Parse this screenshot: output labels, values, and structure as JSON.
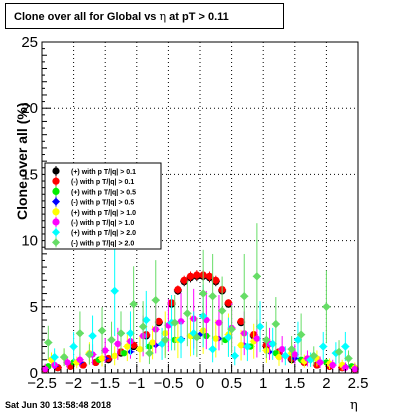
{
  "title": {
    "prefix": "Clone  over all for Global vs",
    "symbol": "η",
    "suffix": "at pT > 0.11"
  },
  "ylabel": "Clone  over all (%)",
  "xlabel": "η",
  "timestamp": "Sat Jun 30 13:58:48 2018",
  "chart_data": {
    "type": "scatter",
    "xlim": [
      -2.5,
      2.5
    ],
    "ylim": [
      0,
      25
    ],
    "xticks": [
      -2.5,
      -2,
      -1.5,
      -1,
      -0.5,
      0,
      0.5,
      1,
      1.5,
      2,
      2.5
    ],
    "xtick_labels": [
      "−2.5",
      "−2",
      "−1.5",
      "−1",
      "−0.5",
      "0",
      "0.5",
      "1",
      "1.5",
      "2",
      "2.5"
    ],
    "yticks": [
      0,
      5,
      10,
      15,
      20,
      25
    ],
    "ytick_labels": [
      "0",
      "5",
      "10",
      "15",
      "20",
      "25"
    ],
    "grid": true,
    "legend_position": "left",
    "series": [
      {
        "name": "(+) with p T/|q| > 0.1",
        "color": "#000000",
        "x": [
          -2.45,
          -2.25,
          -2.05,
          -1.85,
          -1.65,
          -1.45,
          -1.25,
          -1.05,
          -0.85,
          -0.65,
          -0.45,
          -0.35,
          -0.25,
          -0.15,
          -0.05,
          0.05,
          0.15,
          0.25,
          0.35,
          0.45,
          0.65,
          0.85,
          1.05,
          1.25,
          1.45,
          1.65,
          1.85,
          2.05,
          2.25,
          2.45
        ],
        "y": [
          0.3,
          0.4,
          0.5,
          0.6,
          0.8,
          1.0,
          1.5,
          2.0,
          2.8,
          3.8,
          5.2,
          6.2,
          6.9,
          7.2,
          7.3,
          7.3,
          7.2,
          6.9,
          6.2,
          5.2,
          3.8,
          2.8,
          2.0,
          1.5,
          1.0,
          0.8,
          0.6,
          0.5,
          0.4,
          0.3
        ]
      },
      {
        "name": "(-) with p T/|q| > 0.1",
        "color": "#ff0000",
        "x": [
          -2.45,
          -2.25,
          -2.05,
          -1.85,
          -1.65,
          -1.45,
          -1.25,
          -1.05,
          -0.85,
          -0.65,
          -0.45,
          -0.35,
          -0.25,
          -0.15,
          -0.05,
          0.05,
          0.15,
          0.25,
          0.35,
          0.45,
          0.65,
          0.85,
          1.05,
          1.25,
          1.45,
          1.65,
          1.85,
          2.05,
          2.25,
          2.45
        ],
        "y": [
          0.3,
          0.4,
          0.5,
          0.6,
          0.8,
          1.1,
          1.6,
          2.1,
          2.9,
          3.9,
          5.3,
          6.3,
          7.0,
          7.3,
          7.4,
          7.4,
          7.3,
          7.0,
          6.3,
          5.3,
          3.9,
          2.9,
          2.1,
          1.6,
          1.1,
          0.8,
          0.6,
          0.5,
          0.4,
          0.3
        ]
      },
      {
        "name": "(+) with p T/|q| > 0.5",
        "color": "#00ee00",
        "x": [
          -2.4,
          -2.0,
          -1.6,
          -1.2,
          -0.8,
          -0.4,
          -0.1,
          0.1,
          0.4,
          0.8,
          1.2,
          1.6,
          2.0,
          2.4
        ],
        "y": [
          0.5,
          0.8,
          1.0,
          1.5,
          2.0,
          2.5,
          2.8,
          2.8,
          2.5,
          2.0,
          1.5,
          1.0,
          0.8,
          0.5
        ]
      },
      {
        "name": "(-) with p T/|q| > 0.5",
        "color": "#0000ff",
        "x": [
          -2.3,
          -1.9,
          -1.5,
          -1.1,
          -0.7,
          -0.3,
          0.0,
          0.3,
          0.7,
          1.1,
          1.5,
          1.9,
          2.3
        ],
        "y": [
          0.5,
          0.8,
          1.1,
          1.6,
          2.1,
          2.6,
          2.9,
          2.6,
          2.1,
          1.6,
          1.1,
          0.8,
          0.5
        ]
      },
      {
        "name": "(+) with p T/|q| > 1.0",
        "color": "#ffff00",
        "x": [
          -2.35,
          -2.15,
          -1.95,
          -1.75,
          -1.55,
          -1.35,
          -1.15,
          -0.95,
          -0.75,
          -0.55,
          -0.35,
          -0.15,
          0.05,
          0.25,
          0.45,
          0.65,
          0.85,
          1.05,
          1.25,
          1.45,
          1.65,
          1.85,
          2.05,
          2.25,
          2.45
        ],
        "y": [
          1.0,
          1.2,
          0.8,
          1.5,
          1.1,
          1.3,
          2.0,
          1.8,
          2.3,
          3.0,
          2.5,
          2.8,
          3.2,
          2.6,
          2.9,
          2.1,
          2.4,
          1.7,
          1.2,
          1.5,
          0.9,
          1.1,
          0.7,
          0.6,
          0.4
        ]
      },
      {
        "name": "(-) with p T/|q| > 1.0",
        "color": "#ff00ff",
        "x": [
          -2.45,
          -2.3,
          -2.1,
          -1.9,
          -1.7,
          -1.5,
          -1.3,
          -1.1,
          -0.9,
          -0.7,
          -0.5,
          -0.3,
          -0.1,
          0.1,
          0.3,
          0.5,
          0.7,
          0.9,
          1.1,
          1.3,
          1.5,
          1.7,
          1.9,
          2.1,
          2.3,
          2.45
        ],
        "y": [
          0.3,
          0.6,
          0.8,
          1.0,
          1.4,
          1.7,
          2.2,
          2.4,
          2.8,
          3.3,
          3.6,
          3.9,
          4.1,
          4.0,
          3.8,
          3.4,
          3.0,
          2.6,
          2.2,
          1.8,
          1.4,
          1.1,
          0.8,
          0.6,
          0.4,
          0.3
        ]
      },
      {
        "name": "(+) with p T/|q| > 2.0",
        "color": "#00ffff",
        "x": [
          -2.3,
          -2.0,
          -1.7,
          -1.35,
          -1.1,
          -0.85,
          -0.6,
          -0.45,
          -0.3,
          -0.1,
          0.05,
          0.2,
          0.45,
          0.55,
          0.75,
          0.95,
          1.15,
          1.35,
          1.55,
          1.75,
          1.95,
          2.15,
          2.3
        ],
        "y": [
          1.2,
          2.0,
          2.8,
          6.2,
          3.0,
          4.0,
          2.2,
          3.8,
          2.5,
          3.0,
          4.3,
          1.8,
          2.7,
          1.3,
          2.0,
          3.5,
          2.2,
          1.3,
          2.5,
          1.0,
          2.0,
          1.5,
          2.0
        ]
      },
      {
        "name": "(-) with p T/|q| > 2.0",
        "color": "#66dd66",
        "x": [
          -2.4,
          -2.15,
          -1.9,
          -1.75,
          -1.55,
          -1.4,
          -1.25,
          -1.05,
          -0.9,
          -0.8,
          -0.7,
          -0.55,
          -0.4,
          -0.2,
          -0.05,
          0.05,
          0.2,
          0.35,
          0.5,
          0.7,
          0.9,
          1.05,
          1.2,
          1.45,
          1.6,
          1.8,
          2.0,
          2.2,
          2.35
        ],
        "y": [
          2.3,
          1.2,
          3.0,
          1.4,
          3.2,
          2.5,
          3.0,
          5.2,
          3.5,
          1.5,
          5.5,
          2.5,
          3.8,
          4.5,
          2.7,
          6.0,
          5.8,
          4.7,
          3.3,
          5.8,
          7.3,
          2.5,
          3.7,
          1.8,
          2.9,
          1.3,
          5.0,
          1.6,
          1.1
        ]
      }
    ]
  }
}
